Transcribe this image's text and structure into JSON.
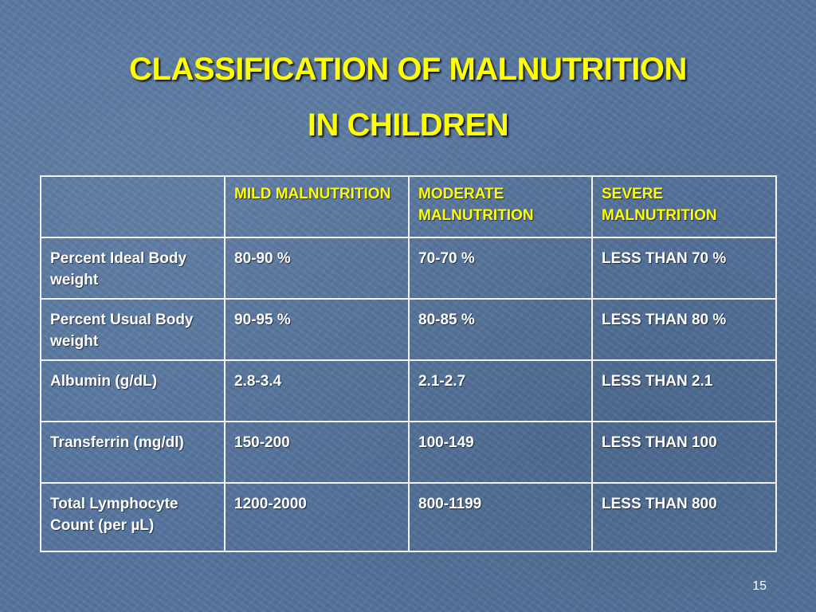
{
  "slide": {
    "title_line1": "CLASSIFICATION OF MALNUTRITION",
    "title_line2": "IN CHILDREN",
    "page_number": "15"
  },
  "table": {
    "headers": [
      "",
      "MILD MALNUTRITION",
      "MODERATE MALNUTRITION",
      "SEVERE MALNUTRITION"
    ],
    "rows": [
      [
        "Percent Ideal Body weight",
        "80-90 %",
        "70-70 %",
        "LESS THAN 70 %"
      ],
      [
        "Percent Usual Body weight",
        "90-95 %",
        "80-85 %",
        "LESS THAN 80 %"
      ],
      [
        "Albumin (g/dL)",
        "2.8-3.4",
        "2.1-2.7",
        "LESS THAN 2.1"
      ],
      [
        "Transferrin (mg/dl)",
        "150-200",
        "100-149",
        "LESS THAN 100"
      ],
      [
        "Total Lymphocyte Count (per µL)",
        "1200-2000",
        "800-1199",
        "LESS THAN 800"
      ]
    ]
  },
  "colors": {
    "background": "#5676a0",
    "title": "#ffff00",
    "header_text": "#ffff00",
    "body_text": "#ffffff",
    "grid_lines": "#f2f2f2"
  }
}
